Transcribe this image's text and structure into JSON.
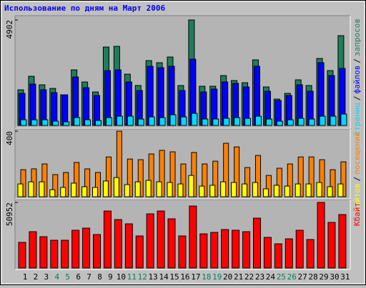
{
  "title": "Использование по дням на Март 2006",
  "legend_separator": "/",
  "chart_data": [
    {
      "type": "bar",
      "ylim": [
        0,
        4902
      ],
      "yticks": [
        4902
      ],
      "series": [
        {
          "name": "запросов",
          "color": "#1e7e5a",
          "values": [
            1656,
            2285,
            1888,
            1722,
            1424,
            2583,
            2020,
            1557,
            3643,
            3676,
            2385,
            1855,
            3014,
            2915,
            3180,
            1855,
            4902,
            1822,
            1822,
            2318,
            2087,
            1987,
            3047,
            1789,
            1225,
            1491,
            2120,
            1855,
            3113,
            2550,
            4173
          ]
        },
        {
          "name": "файлов",
          "color": "#0000ff",
          "values": [
            1490,
            1921,
            1656,
            1524,
            1424,
            2252,
            1755,
            1391,
            2550,
            2583,
            2020,
            1623,
            2749,
            2683,
            2749,
            1623,
            3080,
            1557,
            1689,
            2020,
            1954,
            1789,
            2749,
            1590,
            1159,
            1391,
            1888,
            1590,
            2915,
            2318,
            2650
          ]
        },
        {
          "name": "страниц",
          "color": "#00d8ff",
          "values": [
            265,
            265,
            265,
            199,
            166,
            364,
            265,
            232,
            364,
            430,
            430,
            298,
            397,
            364,
            497,
            397,
            563,
            298,
            298,
            331,
            364,
            331,
            430,
            298,
            199,
            265,
            331,
            298,
            430,
            430,
            530
          ]
        }
      ]
    },
    {
      "type": "bar",
      "ylim": [
        0,
        400
      ],
      "yticks": [
        400
      ],
      "series": [
        {
          "name": "посещений",
          "color": "#ff8000",
          "values": [
            165,
            170,
            200,
            135,
            148,
            209,
            170,
            148,
            243,
            400,
            230,
            226,
            261,
            283,
            274,
            200,
            270,
            200,
            217,
            326,
            304,
            178,
            252,
            130,
            174,
            200,
            243,
            243,
            226,
            165,
            213
          ]
        },
        {
          "name": "сайтов",
          "color": "#ffff00",
          "values": [
            78,
            91,
            91,
            43,
            57,
            83,
            61,
            57,
            96,
            117,
            74,
            91,
            100,
            91,
            87,
            78,
            130,
            65,
            70,
            91,
            87,
            78,
            87,
            48,
            70,
            65,
            78,
            78,
            87,
            61,
            78
          ]
        }
      ]
    },
    {
      "type": "bar",
      "ylim": [
        0,
        50952
      ],
      "yticks": [
        50952
      ],
      "categories": [
        "1",
        "2",
        "3",
        "4",
        "5",
        "6",
        "7",
        "8",
        "9",
        "10",
        "11",
        "12",
        "13",
        "14",
        "15",
        "16",
        "17",
        "18",
        "19",
        "20",
        "21",
        "22",
        "23",
        "24",
        "25",
        "26",
        "27",
        "28",
        "29",
        "30",
        "31"
      ],
      "category_colors": [
        "#000000",
        "#000000",
        "#000000",
        "#00805a",
        "#00805a",
        "#000000",
        "#000000",
        "#000000",
        "#000000",
        "#000000",
        "#00805a",
        "#00805a",
        "#000000",
        "#000000",
        "#000000",
        "#000000",
        "#000000",
        "#00805a",
        "#00805a",
        "#000000",
        "#000000",
        "#000000",
        "#000000",
        "#000000",
        "#00805a",
        "#00805a",
        "#000000",
        "#000000",
        "#000000",
        "#000000",
        "#000000"
      ],
      "series": [
        {
          "name": "Кбайт",
          "color": "#ff0000",
          "values": [
            19937,
            28244,
            24367,
            21598,
            21598,
            29352,
            31013,
            26029,
            44304,
            37658,
            34336,
            24921,
            42089,
            44304,
            38213,
            24921,
            48181,
            26582,
            27690,
            29906,
            29352,
            28244,
            38767,
            23813,
            18829,
            22706,
            29352,
            22152,
            50952,
            35443,
            41536
          ]
        }
      ]
    }
  ]
}
